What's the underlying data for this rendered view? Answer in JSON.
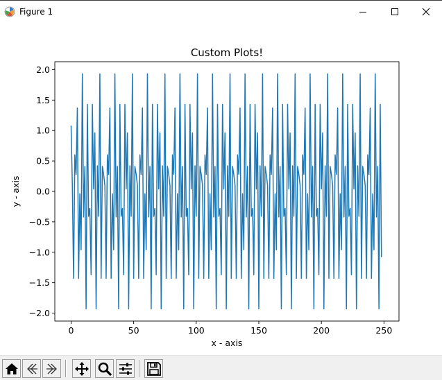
{
  "window": {
    "title": "Figure 1",
    "buttons": [
      "minimize",
      "maximize",
      "close"
    ]
  },
  "toolbar": {
    "buttons": [
      {
        "name": "home",
        "icon": "home-icon"
      },
      {
        "name": "back",
        "icon": "back-arrow-icon"
      },
      {
        "name": "forward",
        "icon": "forward-arrow-icon"
      },
      {
        "name": "pan",
        "icon": "move-icon"
      },
      {
        "name": "zoom",
        "icon": "magnifier-icon"
      },
      {
        "name": "configure-subplots",
        "icon": "sliders-icon"
      },
      {
        "name": "save",
        "icon": "floppy-disk-icon"
      }
    ]
  },
  "chart_data": {
    "type": "line",
    "title": "Custom Plots!",
    "xlabel": "x - axis",
    "ylabel": "y - axis",
    "xlim": [
      -13,
      262
    ],
    "ylim": [
      -2.13,
      2.13
    ],
    "xticks": [
      0,
      50,
      100,
      150,
      200,
      250
    ],
    "xtick_labels": [
      "0",
      "50",
      "100",
      "150",
      "200",
      "250"
    ],
    "yticks": [
      -2.0,
      -1.5,
      -1.0,
      -0.5,
      0.0,
      0.5,
      1.0,
      1.5,
      2.0
    ],
    "ytick_labels": [
      "−2.0",
      "−1.5",
      "−1.0",
      "−0.5",
      "0.0",
      "0.5",
      "1.0",
      "1.5",
      "2.0"
    ],
    "grid": false,
    "color": "#1f77b4",
    "series": [
      {
        "x_start": 0,
        "x_step": 1,
        "period_start": 1,
        "period_values": [
          0.1,
          -1.43,
          0.6,
          0.28,
          1.37,
          -1.43,
          -0.04,
          -0.96,
          1.93,
          -0.42,
          0.41,
          -1.93,
          1.43,
          -0.41,
          -0.28,
          -1.37,
          1.43,
          0.04,
          0.96,
          -1.93,
          0.42,
          -0.41,
          1.93,
          -1.43,
          0.41,
          0.28
        ],
        "first_value": 1.08,
        "last_index": 248,
        "last_value": -1.08
      }
    ]
  }
}
